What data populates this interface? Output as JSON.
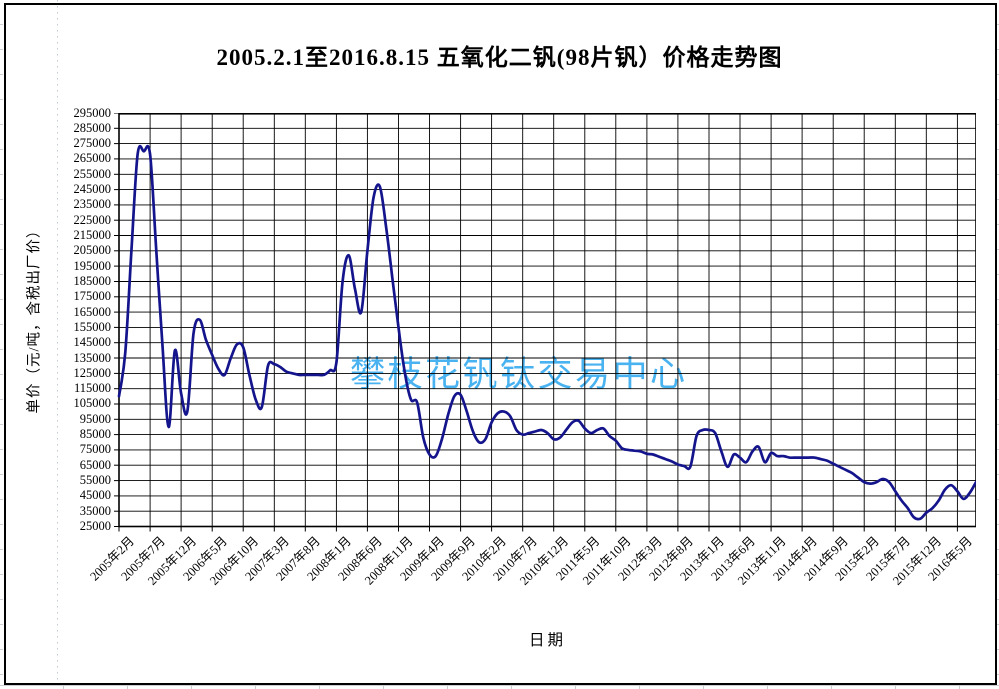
{
  "chart": {
    "title": "2005.2.1至2016.8.15  五氧化二钒(98片钒）价格走势图",
    "x_axis_title": "日期",
    "y_axis_title": "单价（元/吨，含税出厂价）",
    "watermark": "攀枝花钒钛交易中心",
    "colors": {
      "line": "#14148C",
      "grid": "#000000",
      "plot_border": "#000000",
      "watermark": "#49B2F0",
      "text": "#000000",
      "background": "#FFFFFF"
    }
  },
  "chart_data": {
    "type": "line",
    "title": "2005.2.1至2016.8.15  五氧化二钒(98片钒）价格走势图",
    "xlabel": "日期",
    "ylabel": "单价（元/吨，含税出厂价）",
    "ylim": [
      25000,
      295000
    ],
    "y_tick_step": 10000,
    "y_ticks": [
      295000,
      285000,
      275000,
      265000,
      255000,
      245000,
      235000,
      225000,
      215000,
      205000,
      195000,
      185000,
      175000,
      165000,
      155000,
      145000,
      135000,
      125000,
      115000,
      105000,
      95000,
      85000,
      75000,
      65000,
      55000,
      45000,
      35000,
      25000
    ],
    "grid": "both",
    "legend": "none",
    "x_monthly_start": "2005-02",
    "x_monthly_end": "2016-08",
    "x_tick_month_interval": 5,
    "x_tick_labels": [
      "2005年2月",
      "2005年7月",
      "2005年12月",
      "2006年5月",
      "2006年10月",
      "2007年3月",
      "2007年8月",
      "2008年1月",
      "2008年6月",
      "2008年11月",
      "2009年4月",
      "2009年9月",
      "2010年2月",
      "2010年7月",
      "2010年12月",
      "2011年5月",
      "2011年10月",
      "2012年3月",
      "2012年8月",
      "2013年1月",
      "2013年6月",
      "2013年11月",
      "2014年4月",
      "2014年9月",
      "2015年2月",
      "2015年7月",
      "2015年12月",
      "2016年5月"
    ],
    "series": [
      {
        "name": "五氧化二钒(98片钒)价格",
        "color": "#14148C",
        "smooth": true,
        "values": [
          110000,
          138000,
          205000,
          268000,
          270000,
          268000,
          205000,
          143000,
          90000,
          140000,
          112000,
          100000,
          151000,
          160000,
          147000,
          137000,
          128000,
          124000,
          135000,
          144000,
          142000,
          124000,
          108000,
          103000,
          130000,
          131000,
          129000,
          126000,
          125000,
          124000,
          124000,
          124000,
          124000,
          124000,
          127000,
          132000,
          185000,
          202000,
          180000,
          165000,
          205000,
          240000,
          247000,
          221000,
          188000,
          155000,
          126000,
          108000,
          106000,
          83000,
          72000,
          71000,
          82000,
          98000,
          110000,
          111000,
          100000,
          87000,
          80000,
          82000,
          93000,
          99000,
          100000,
          97000,
          88000,
          85000,
          86000,
          87000,
          88000,
          86000,
          82000,
          83000,
          88000,
          93000,
          94000,
          89000,
          86000,
          88000,
          89000,
          84000,
          81000,
          76000,
          75000,
          74500,
          74000,
          72500,
          72000,
          70500,
          69000,
          67500,
          65500,
          64500,
          64000,
          84000,
          88000,
          88000,
          86000,
          74000,
          64000,
          72000,
          70000,
          67000,
          74000,
          77000,
          67000,
          73000,
          71000,
          71000,
          70000,
          70000,
          70000,
          70000,
          70000,
          69000,
          68000,
          66000,
          64000,
          62000,
          60000,
          57000,
          54000,
          53000,
          54000,
          56000,
          54000,
          48000,
          42000,
          37000,
          31000,
          30000,
          34000,
          37000,
          42000,
          49000,
          52000,
          48000,
          43000,
          47000,
          54000
        ]
      }
    ]
  }
}
